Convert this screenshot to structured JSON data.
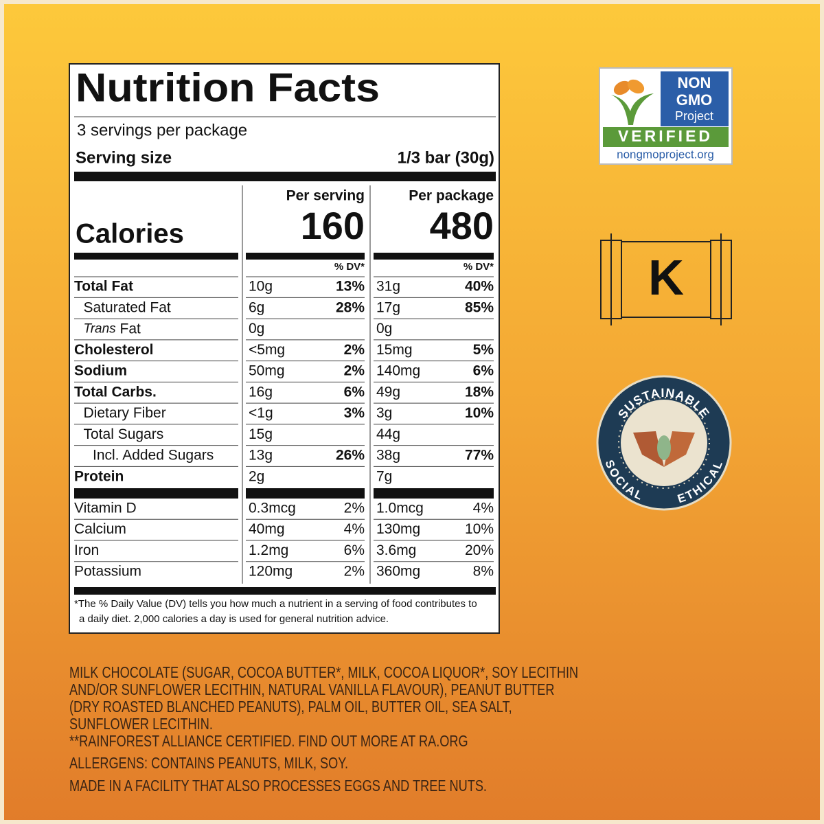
{
  "label": {
    "title": "Nutrition Facts",
    "servings": "3 servings per package",
    "serving_size_label": "Serving size",
    "serving_size": "1/3 bar (30g)",
    "calories_label": "Calories",
    "per_serving_header": "Per serving",
    "per_package_header": "Per package",
    "calories_per_serving": "160",
    "calories_per_package": "480",
    "dv_header": "% DV*",
    "nutrients": [
      {
        "name": "Total Fat",
        "per_serving": {
          "amount": "10g",
          "dv": "13%"
        },
        "per_package": {
          "amount": "31g",
          "dv": "40%"
        },
        "sub": [
          {
            "name": "Saturated Fat",
            "per_serving": {
              "amount": "6g",
              "dv": "28%"
            },
            "per_package": {
              "amount": "17g",
              "dv": "85%"
            }
          },
          {
            "name_italic": "Trans",
            "name": "Fat",
            "per_serving": {
              "amount": "0g"
            },
            "per_package": {
              "amount": "0g"
            }
          }
        ]
      },
      {
        "name": "Cholesterol",
        "per_serving": {
          "amount": "<5mg",
          "dv": "2%"
        },
        "per_package": {
          "amount": "15mg",
          "dv": "5%"
        }
      },
      {
        "name": "Sodium",
        "per_serving": {
          "amount": "50mg",
          "dv": "2%"
        },
        "per_package": {
          "amount": "140mg",
          "dv": "6%"
        }
      },
      {
        "name": "Total Carbs.",
        "per_serving": {
          "amount": "16g",
          "dv": "6%"
        },
        "per_package": {
          "amount": "49g",
          "dv": "18%"
        },
        "sub": [
          {
            "name": "Dietary Fiber",
            "per_serving": {
              "amount": "<1g",
              "dv": "3%"
            },
            "per_package": {
              "amount": "3g",
              "dv": "10%"
            }
          },
          {
            "name": "Total Sugars",
            "per_serving": {
              "amount": "15g"
            },
            "per_package": {
              "amount": "44g"
            },
            "sub": [
              {
                "name": "Incl. Added Sugars",
                "per_serving": {
                  "amount": "13g",
                  "dv": "26%"
                },
                "per_package": {
                  "amount": "38g",
                  "dv": "77%"
                }
              }
            ]
          }
        ]
      },
      {
        "name": "Protein",
        "per_serving": {
          "amount": "2g"
        },
        "per_package": {
          "amount": "7g"
        }
      }
    ],
    "vitamins": [
      {
        "name": "Vitamin D",
        "per_serving": {
          "amount": "0.3mcg",
          "dv": "2%"
        },
        "per_package": {
          "amount": "1.0mcg",
          "dv": "4%"
        }
      },
      {
        "name": "Calcium",
        "per_serving": {
          "amount": "40mg",
          "dv": "4%"
        },
        "per_package": {
          "amount": "130mg",
          "dv": "10%"
        }
      },
      {
        "name": "Iron",
        "per_serving": {
          "amount": "1.2mg",
          "dv": "6%"
        },
        "per_package": {
          "amount": "3.6mg",
          "dv": "20%"
        }
      },
      {
        "name": "Potassium",
        "per_serving": {
          "amount": "120mg",
          "dv": "2%"
        },
        "per_package": {
          "amount": "360mg",
          "dv": "8%"
        }
      }
    ],
    "footnote": [
      "*The % Daily Value (DV) tells you how much a nutrient in a serving of food contributes to",
      "a daily diet. 2,000 calories a day is used for general nutrition advice."
    ]
  },
  "badges": {
    "non_gmo": {
      "line1": "NON",
      "line2": "GMO",
      "line3": "Project",
      "verified": "VERIFIED",
      "url": "nongmoproject.org"
    },
    "kosher": "K",
    "sustainable": {
      "top": "SUSTAINABLE",
      "left": "SOCIAL",
      "right": "ETHICAL"
    }
  },
  "ingredients": [
    "MILK CHOCOLATE (SUGAR, COCOA BUTTER*, MILK, COCOA LIQUOR*, SOY LECITHIN",
    "AND/OR SUNFLOWER LECITHIN, NATURAL VANILLA FLAVOUR), PEANUT BUTTER",
    "(DRY ROASTED BLANCHED PEANUTS), PALM OIL, BUTTER OIL, SEA SALT,",
    "SUNFLOWER LECITHIN.",
    "**RAINFOREST ALLIANCE CERTIFIED. FIND OUT MORE AT RA.ORG"
  ],
  "allergens": "ALLERGENS: CONTAINS PEANUTS, MILK, SOY.",
  "facility": "MADE IN A FACILITY THAT ALSO PROCESSES EGGS AND TREE NUTS."
}
